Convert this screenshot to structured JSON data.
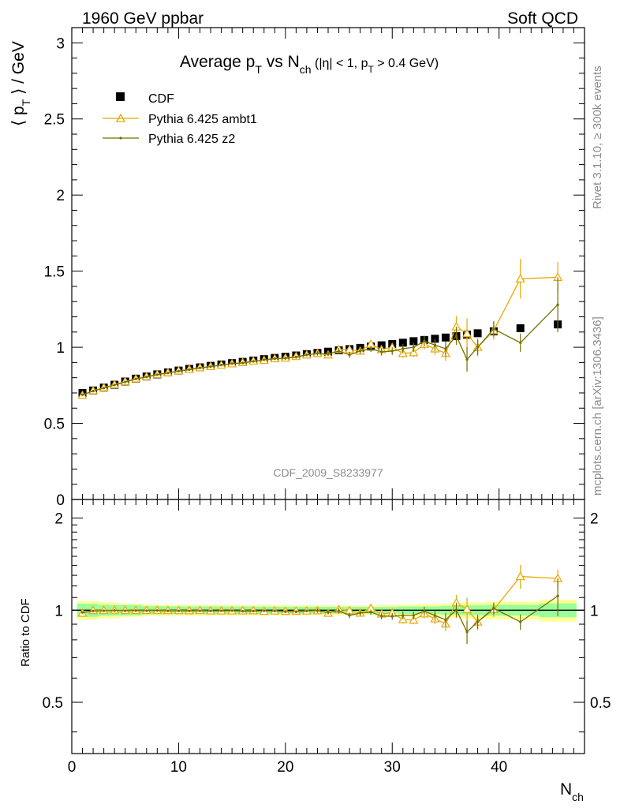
{
  "header": {
    "left": "1960 GeV ppbar",
    "right": "Soft QCD"
  },
  "side_labels": {
    "rivet": "Rivet 3.1.10, ≥ 300k events",
    "mcplots": "mcplots.cern.ch [arXiv:1306.3436]"
  },
  "watermark": "CDF_2009_S8233977",
  "chart_data": {
    "type": "scatter",
    "title": {
      "main": "Average p",
      "main_sub": "T",
      "vs": " vs N",
      "vs_sub": "ch",
      "cut_a": " (|η| < 1, p",
      "cut_sub": "T",
      "cut_b": " > 0.4 GeV)"
    },
    "ylabel": {
      "open": "⟨ p",
      "sub": "T",
      "close": " ⟩ / GeV"
    },
    "xlabel": {
      "main": "N",
      "sub": "ch"
    },
    "ratio_ylabel": "Ratio to CDF",
    "xlim": [
      0,
      48
    ],
    "ylim": [
      0,
      3.1
    ],
    "ratio_ylim": [
      0.34,
      2.3
    ],
    "x_ticks": [
      0,
      10,
      20,
      30,
      40
    ],
    "y_ticks": [
      0,
      0.5,
      1,
      1.5,
      2,
      2.5,
      3
    ],
    "y_tick_labels": [
      "0",
      "0.5",
      "1",
      "1.5",
      "2",
      "2.5",
      "3"
    ],
    "ratio_ticks": [
      0.5,
      1,
      2
    ],
    "ratio_tick_labels": [
      "0.5",
      "1",
      "2"
    ],
    "legend": [
      "CDF",
      "Pythia 6.425 ambt1",
      "Pythia 6.425 z2"
    ],
    "series": [
      {
        "name": "CDF",
        "color": "#000000",
        "marker": "square",
        "x": [
          1,
          2,
          3,
          4,
          5,
          6,
          7,
          8,
          9,
          10,
          11,
          12,
          13,
          14,
          15,
          16,
          17,
          18,
          19,
          20,
          21,
          22,
          23,
          24,
          25,
          26,
          27,
          28,
          29,
          30,
          31,
          32,
          33,
          34,
          35,
          36,
          37,
          38,
          39.5,
          42,
          45.5
        ],
        "y": [
          0.7,
          0.716,
          0.735,
          0.754,
          0.775,
          0.794,
          0.808,
          0.822,
          0.835,
          0.847,
          0.858,
          0.868,
          0.878,
          0.887,
          0.896,
          0.904,
          0.913,
          0.922,
          0.93,
          0.938,
          0.946,
          0.955,
          0.963,
          0.971,
          0.98,
          0.988,
          0.996,
          1.005,
          1.013,
          1.021,
          1.03,
          1.04,
          1.048,
          1.056,
          1.064,
          1.073,
          1.083,
          1.092,
          1.105,
          1.125,
          1.15
        ],
        "band_green": [
          0.035,
          0.035,
          0.03,
          0.03,
          0.03,
          0.03,
          0.025,
          0.025,
          0.025,
          0.025,
          0.025,
          0.025,
          0.025,
          0.025,
          0.025,
          0.025,
          0.025,
          0.025,
          0.025,
          0.025,
          0.025,
          0.025,
          0.025,
          0.025,
          0.025,
          0.025,
          0.025,
          0.025,
          0.025,
          0.025,
          0.03,
          0.03,
          0.03,
          0.03,
          0.035,
          0.035,
          0.04,
          0.04,
          0.045,
          0.045,
          0.06
        ],
        "band_yellow": [
          0.05,
          0.05,
          0.045,
          0.045,
          0.04,
          0.04,
          0.035,
          0.035,
          0.035,
          0.035,
          0.035,
          0.035,
          0.035,
          0.035,
          0.035,
          0.035,
          0.035,
          0.035,
          0.035,
          0.035,
          0.035,
          0.035,
          0.035,
          0.035,
          0.035,
          0.035,
          0.035,
          0.035,
          0.04,
          0.04,
          0.045,
          0.045,
          0.05,
          0.05,
          0.055,
          0.06,
          0.065,
          0.065,
          0.075,
          0.075,
          0.095
        ]
      },
      {
        "name": "Pythia 6.425 ambt1",
        "color": "#e8a800",
        "marker": "triangle",
        "x": [
          1,
          2,
          3,
          4,
          5,
          6,
          7,
          8,
          9,
          10,
          11,
          12,
          13,
          14,
          15,
          16,
          17,
          18,
          19,
          20,
          21,
          22,
          23,
          24,
          25,
          26,
          27,
          28,
          29,
          30,
          31,
          32,
          33,
          34,
          35,
          36,
          37,
          38,
          39.5,
          42,
          45.5
        ],
        "y": [
          0.685,
          0.715,
          0.735,
          0.755,
          0.775,
          0.793,
          0.807,
          0.822,
          0.833,
          0.845,
          0.855,
          0.866,
          0.874,
          0.883,
          0.892,
          0.9,
          0.91,
          0.915,
          0.925,
          0.93,
          0.94,
          0.95,
          0.96,
          0.95,
          0.985,
          0.985,
          0.975,
          1.02,
          0.985,
          1.0,
          0.96,
          0.965,
          1.02,
          0.99,
          0.96,
          1.135,
          1.09,
          1.0,
          1.11,
          1.45,
          1.46
        ],
        "err": [
          0,
          0,
          0,
          0,
          0,
          0,
          0,
          0,
          0,
          0,
          0,
          0,
          0,
          0,
          0,
          0,
          0,
          0,
          0.01,
          0.01,
          0.01,
          0.01,
          0.015,
          0.015,
          0.02,
          0.02,
          0.02,
          0.02,
          0.025,
          0.025,
          0.03,
          0.03,
          0.035,
          0.04,
          0.05,
          0.07,
          0.1,
          0.06,
          0.06,
          0.13,
          0.1
        ]
      },
      {
        "name": "Pythia 6.425 z2",
        "color": "#707000",
        "marker": "dot",
        "x": [
          1,
          2,
          3,
          4,
          5,
          6,
          7,
          8,
          9,
          10,
          11,
          12,
          13,
          14,
          15,
          16,
          17,
          18,
          19,
          20,
          21,
          22,
          23,
          24,
          25,
          26,
          27,
          28,
          29,
          30,
          31,
          32,
          33,
          34,
          35,
          36,
          37,
          38,
          39.5,
          42,
          45.5
        ],
        "y": [
          0.688,
          0.712,
          0.732,
          0.752,
          0.772,
          0.792,
          0.805,
          0.82,
          0.831,
          0.843,
          0.853,
          0.864,
          0.873,
          0.883,
          0.893,
          0.897,
          0.907,
          0.918,
          0.925,
          0.928,
          0.935,
          0.95,
          0.96,
          0.955,
          0.975,
          0.95,
          0.975,
          0.99,
          0.97,
          0.975,
          0.99,
          1.0,
          1.04,
          1.015,
          0.99,
          1.075,
          0.92,
          1.0,
          1.12,
          1.03,
          1.28
        ],
        "err": [
          0,
          0,
          0,
          0,
          0,
          0,
          0,
          0,
          0,
          0,
          0,
          0,
          0,
          0,
          0,
          0,
          0,
          0,
          0.01,
          0.01,
          0.01,
          0.01,
          0.015,
          0.015,
          0.02,
          0.02,
          0.02,
          0.02,
          0.025,
          0.025,
          0.03,
          0.03,
          0.035,
          0.04,
          0.05,
          0.06,
          0.08,
          0.05,
          0.05,
          0.06,
          0.18
        ]
      }
    ]
  }
}
